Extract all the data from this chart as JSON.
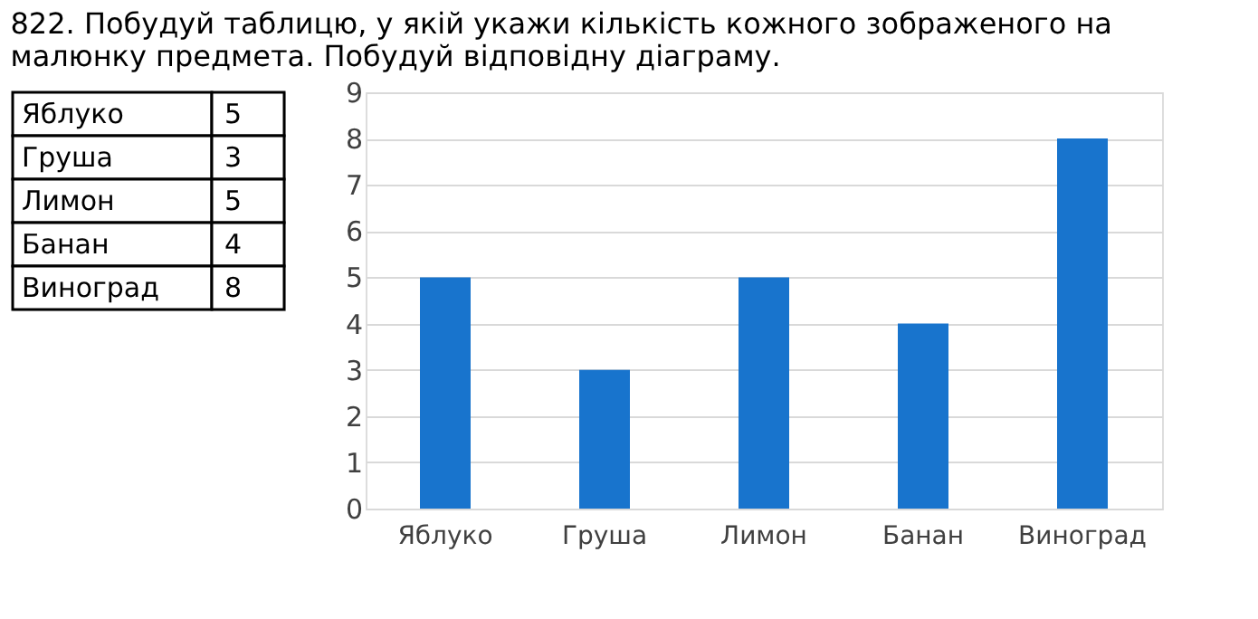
{
  "chart_data": [
    {
      "type": "other",
      "title": "822. Побудуй таблицю, у якій укажи кількість кожного зображеного на малюнку предмета. Побудуй відповідну діаграму.",
      "categories": [
        "Яблуко",
        "Груша",
        "Лимон",
        "Банан",
        "Виноград"
      ],
      "values": [
        5,
        3,
        5,
        4,
        8
      ],
      "data_labels": true
    },
    {
      "type": "bar",
      "categories": [
        "Яблуко",
        "Груша",
        "Лимон",
        "Банан",
        "Виноград"
      ],
      "values": [
        5,
        3,
        5,
        4,
        8
      ],
      "color": "#1874cd",
      "ylim": [
        0,
        9
      ],
      "yticks": [
        0,
        1,
        2,
        3,
        4,
        5,
        6,
        7,
        8,
        9
      ],
      "grid": "y"
    }
  ]
}
